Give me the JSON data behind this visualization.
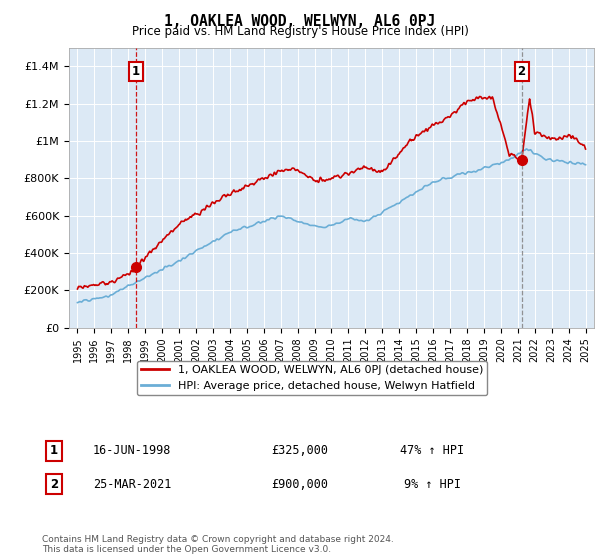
{
  "title": "1, OAKLEA WOOD, WELWYN, AL6 0PJ",
  "subtitle": "Price paid vs. HM Land Registry's House Price Index (HPI)",
  "ylabel_ticks": [
    "£0",
    "£200K",
    "£400K",
    "£600K",
    "£800K",
    "£1M",
    "£1.2M",
    "£1.4M"
  ],
  "ytick_values": [
    0,
    200000,
    400000,
    600000,
    800000,
    1000000,
    1200000,
    1400000
  ],
  "ylim": [
    0,
    1500000
  ],
  "xlim_start": 1994.5,
  "xlim_end": 2025.5,
  "legend_line1": "1, OAKLEA WOOD, WELWYN, AL6 0PJ (detached house)",
  "legend_line2": "HPI: Average price, detached house, Welwyn Hatfield",
  "sale1_label": "1",
  "sale1_date": "16-JUN-1998",
  "sale1_price": "£325,000",
  "sale1_hpi": "47% ↑ HPI",
  "sale1_year": 1998.46,
  "sale1_value": 325000,
  "sale2_label": "2",
  "sale2_date": "25-MAR-2021",
  "sale2_price": "£900,000",
  "sale2_hpi": "9% ↑ HPI",
  "sale2_year": 2021.23,
  "sale2_value": 900000,
  "hpi_color": "#6baed6",
  "price_color": "#cc0000",
  "marker_color": "#cc0000",
  "sale1_vline_color": "#cc0000",
  "sale2_vline_color": "#888888",
  "box_edge_color": "#cc0000",
  "footer": "Contains HM Land Registry data © Crown copyright and database right 2024.\nThis data is licensed under the Open Government Licence v3.0.",
  "bg_color": "#ffffff",
  "plot_bg_color": "#dce9f5",
  "grid_color": "#ffffff"
}
